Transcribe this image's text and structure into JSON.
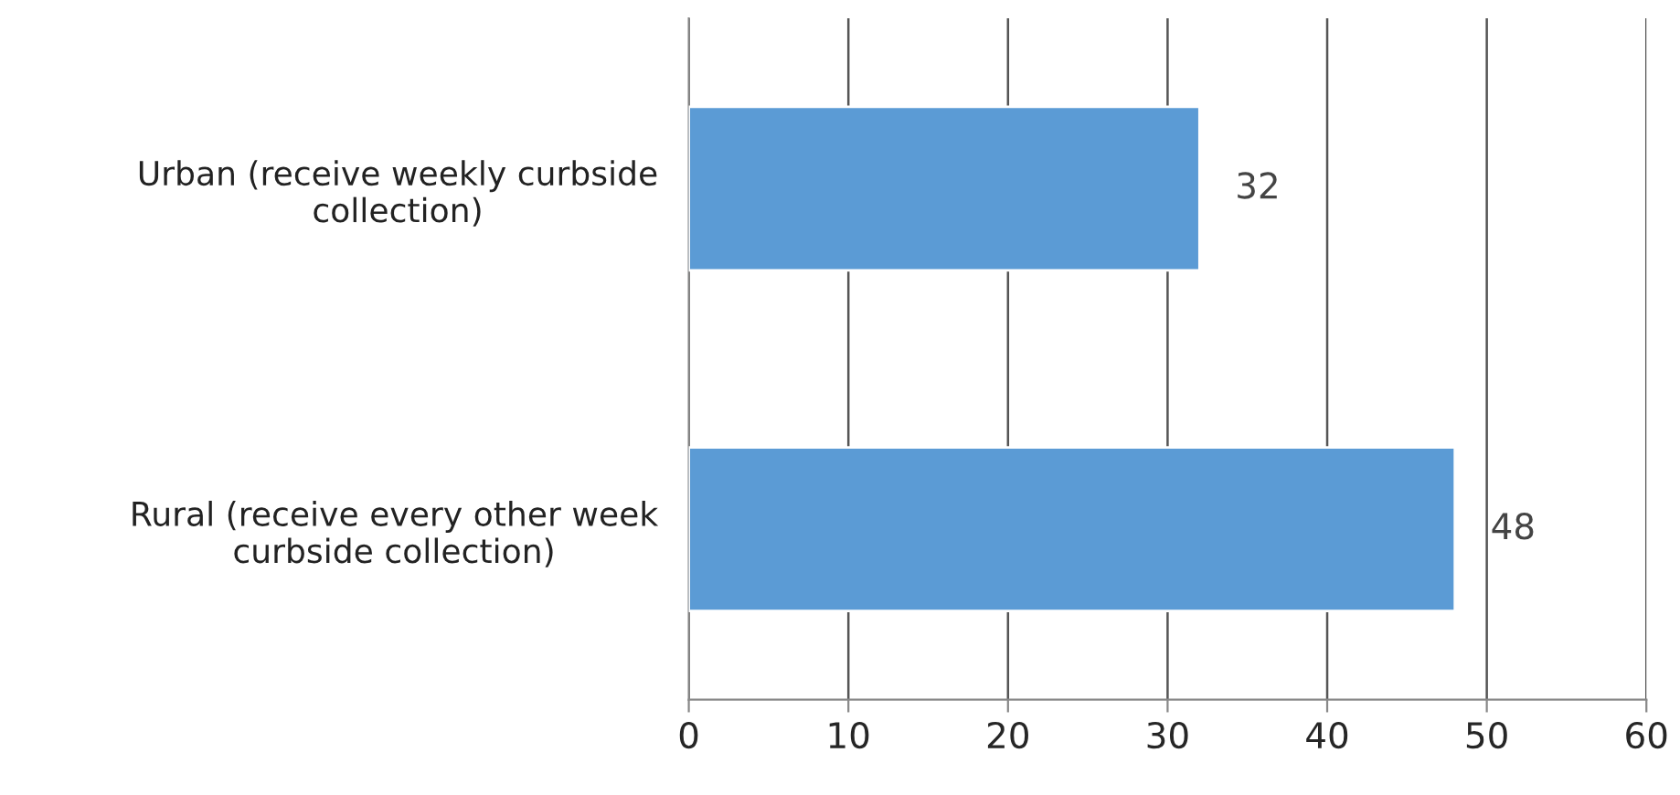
{
  "chart_data": {
    "type": "bar",
    "orientation": "horizontal",
    "categories": [
      "Urban (receive weekly curbside\ncollection)",
      "Rural (receive every other week\ncurbside collection)"
    ],
    "values": [
      32,
      48
    ],
    "color": "#5b9bd5",
    "xlim": [
      0,
      60
    ],
    "xticks": [
      0,
      10,
      20,
      30,
      40,
      50,
      60
    ],
    "grid": "x",
    "data_labels": true
  }
}
